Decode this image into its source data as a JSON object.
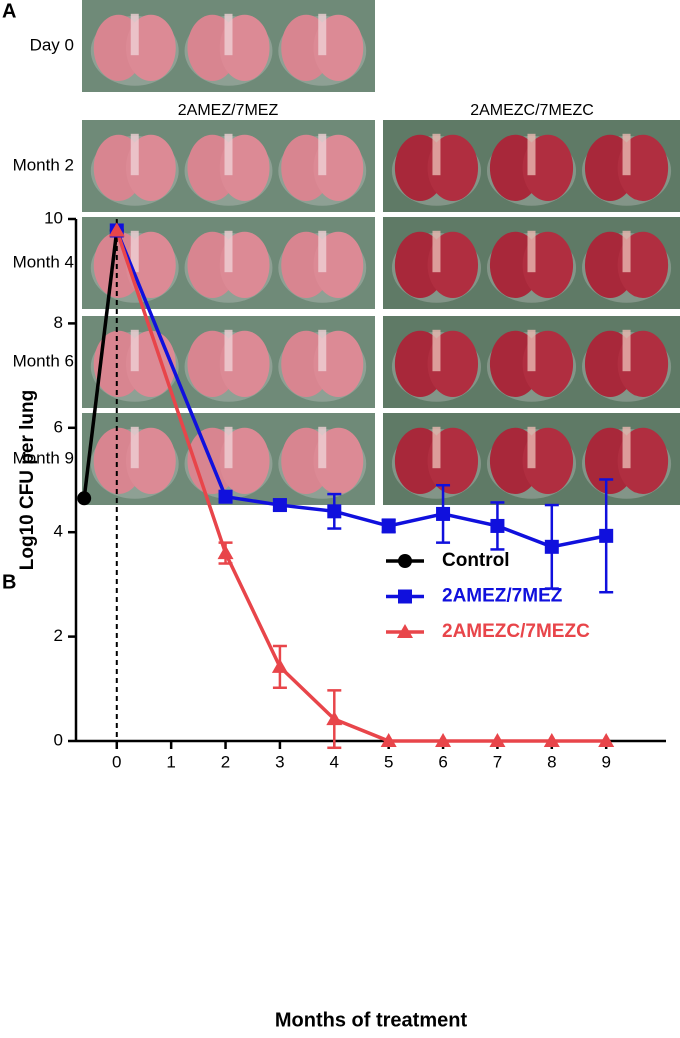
{
  "panel_a": {
    "label": "A",
    "column_headers": [
      "2AMEZ/7MEZ",
      "2AMEZC/7MEZC"
    ],
    "rows": [
      "Day 0",
      "Month 2",
      "Month 4",
      "Month 6",
      "Month 9"
    ]
  },
  "chart_data": {
    "type": "line",
    "panel_label": "B",
    "x_label": "Months of treatment",
    "y_label": "Log10 CFU per lung",
    "xlim": [
      -0.75,
      10.1
    ],
    "xticks": [
      0,
      1,
      2,
      3,
      4,
      5,
      6,
      7,
      8,
      9
    ],
    "ylim": [
      0,
      10
    ],
    "yticks": [
      0,
      2,
      4,
      6,
      8,
      10
    ],
    "legend": "upper right",
    "series": [
      {
        "name": "Control",
        "color": "#000000",
        "marker": "circle",
        "x": [
          -0.6,
          0
        ],
        "values": [
          4.65,
          9.78
        ],
        "errors": [
          0,
          0
        ]
      },
      {
        "name": "2AMEZ/7MEZ",
        "color": "#1010dd",
        "marker": "square",
        "x": [
          0,
          2,
          3,
          4,
          5,
          6,
          7,
          8,
          9
        ],
        "values": [
          9.78,
          4.68,
          4.52,
          4.4,
          4.12,
          4.35,
          4.12,
          3.72,
          3.93
        ],
        "errors": [
          0,
          0.1,
          0.1,
          0.33,
          0.12,
          0.55,
          0.45,
          0.8,
          1.08
        ]
      },
      {
        "name": "2AMEZC/7MEZC",
        "color": "#e8454a",
        "marker": "triangle",
        "x": [
          0,
          2,
          3,
          4,
          5,
          6,
          7,
          8,
          9
        ],
        "values": [
          9.78,
          3.6,
          1.42,
          0.42,
          0,
          0,
          0,
          0,
          0
        ],
        "errors": [
          0,
          0.2,
          0.4,
          0.55,
          0,
          0,
          0,
          0,
          0
        ]
      }
    ]
  }
}
